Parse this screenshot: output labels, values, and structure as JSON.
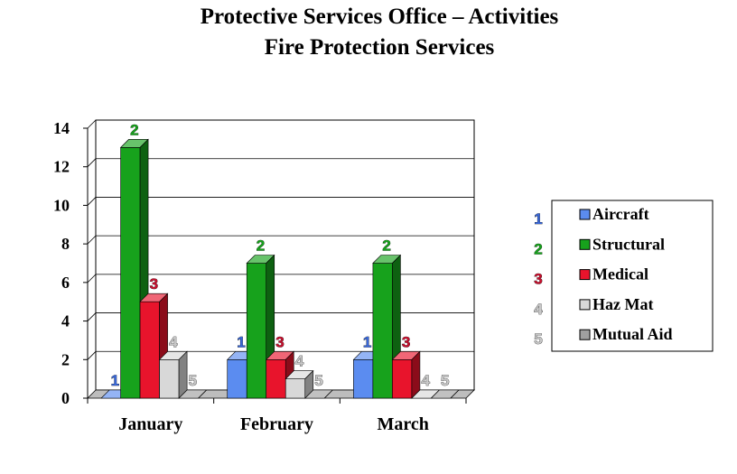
{
  "chart_data": {
    "type": "bar",
    "title": "Protective Services Office – Activities",
    "subtitle": "Fire Protection Services",
    "categories": [
      "January",
      "February",
      "March"
    ],
    "series": [
      {
        "name": "Aircraft",
        "marker": "1",
        "color": "#5b8cf0",
        "values": [
          0,
          2,
          2
        ]
      },
      {
        "name": "Structural",
        "marker": "2",
        "color": "#17a21c",
        "values": [
          13,
          7,
          7
        ]
      },
      {
        "name": "Medical",
        "marker": "3",
        "color": "#e8142c",
        "values": [
          5,
          2,
          2
        ]
      },
      {
        "name": "Haz Mat",
        "marker": "4",
        "color": "#d8d8d8",
        "values": [
          2,
          1,
          0
        ]
      },
      {
        "name": "Mutual Aid",
        "marker": "5",
        "color": "#a0a0a0",
        "values": [
          0,
          0,
          0
        ]
      }
    ],
    "label_colors": [
      "#3a68d8",
      "#17a21c",
      "#c8102e",
      "#c8c8c8",
      "#c8c8c8"
    ],
    "ylim": [
      0,
      14
    ],
    "yticks": [
      0,
      2,
      4,
      6,
      8,
      10,
      12,
      14
    ],
    "xlabel": "",
    "ylabel": "",
    "grid": true,
    "legend_position": "right",
    "bar_style": "3d"
  }
}
